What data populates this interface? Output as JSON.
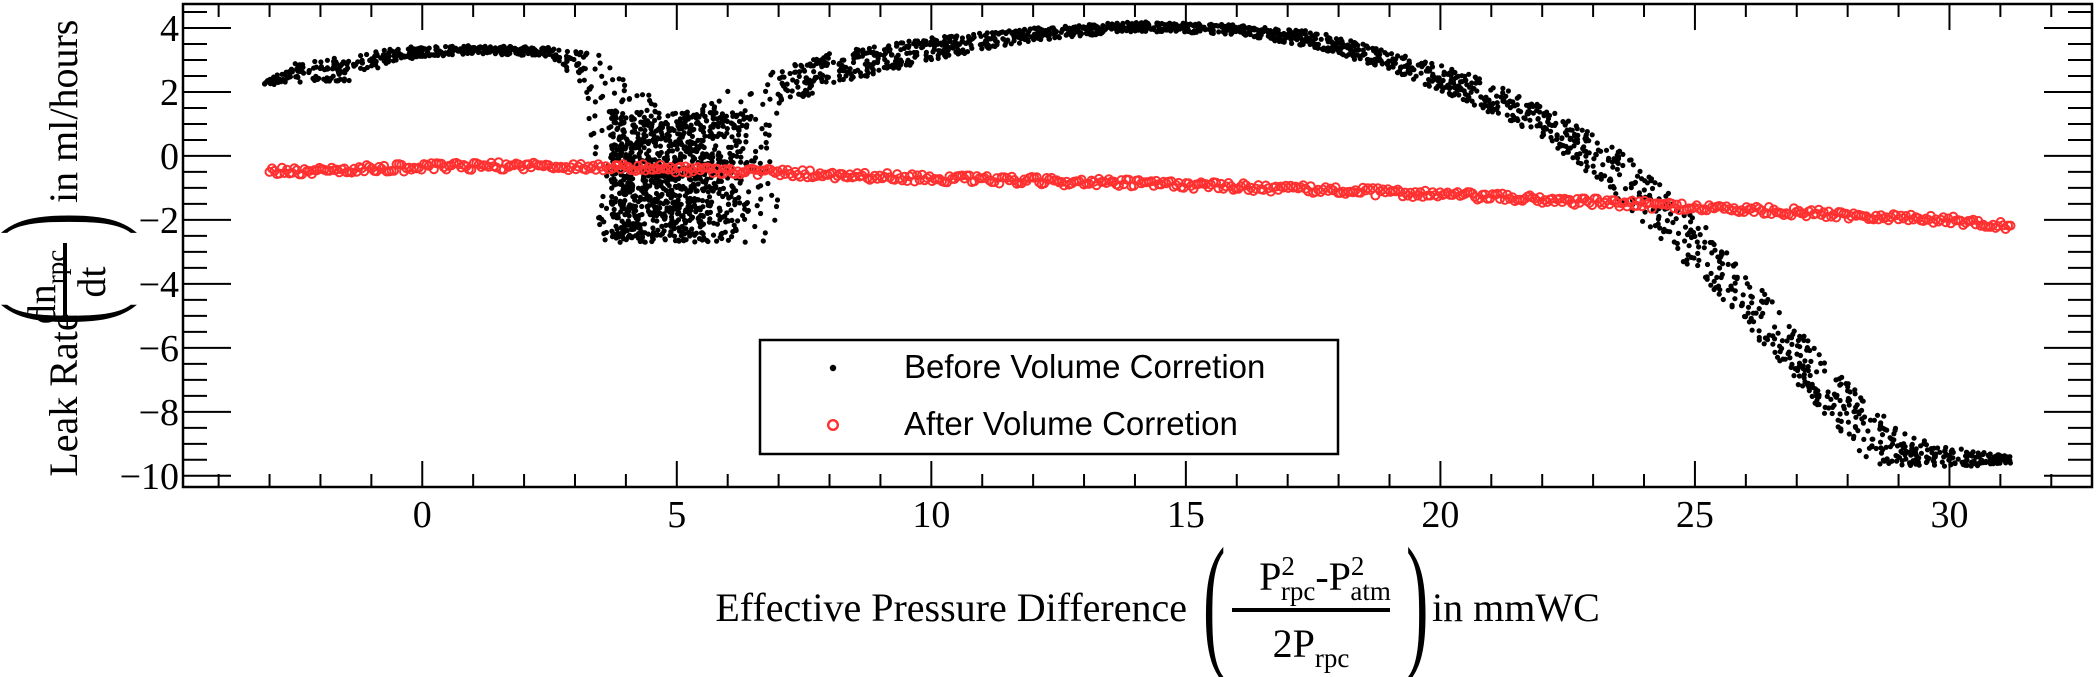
{
  "chart_data": {
    "type": "scatter",
    "xlabel": {
      "prefix": "Effective Pressure Difference",
      "frac_num_base1": "P",
      "frac_num_sup1": "2",
      "frac_num_sub1": "rpc",
      "frac_num_sep": "-",
      "frac_num_base2": "P",
      "frac_num_sup2": "2",
      "frac_num_sub2": "atm",
      "frac_den_base": "2P",
      "frac_den_sub": "rpc",
      "suffix": "in mmWC"
    },
    "ylabel": {
      "prefix": "Leak Rate",
      "frac_num_base": "dn",
      "frac_num_sub": "rpc",
      "frac_den": "dt",
      "suffix": "in ml/hours"
    },
    "xlim": [
      -4.7,
      32.8
    ],
    "ylim": [
      -10.35,
      4.75
    ],
    "xticks": [
      0,
      5,
      10,
      15,
      20,
      25,
      30
    ],
    "xtick_labels": [
      "0",
      "5",
      "10",
      "15",
      "20",
      "25",
      "30"
    ],
    "yticks": [
      4,
      2,
      0,
      -2,
      -4,
      -6,
      -8,
      -10
    ],
    "ytick_labels": [
      "4",
      "2",
      "0",
      "−2",
      "−4",
      "−6",
      "−8",
      "−10"
    ],
    "grid": false,
    "legend_position": "bottom-center",
    "series": [
      {
        "name": "Before Volume Corretion",
        "color": "#000000",
        "marker": "dot",
        "upper_envelope": [
          [
            -3.1,
            2.3
          ],
          [
            -2.5,
            2.9
          ],
          [
            -1.5,
            3.1
          ],
          [
            -0.5,
            3.4
          ],
          [
            1.0,
            3.45
          ],
          [
            2.5,
            3.4
          ],
          [
            3.5,
            3.2
          ],
          [
            4.2,
            2.4
          ],
          [
            5.0,
            1.2
          ],
          [
            5.8,
            1.9
          ],
          [
            6.8,
            2.6
          ],
          [
            8.0,
            3.2
          ],
          [
            10.0,
            3.7
          ],
          [
            12.0,
            4.0
          ],
          [
            14.0,
            4.2
          ],
          [
            16.0,
            4.1
          ],
          [
            17.5,
            3.9
          ],
          [
            19.0,
            3.3
          ],
          [
            20.5,
            2.6
          ],
          [
            22.0,
            1.6
          ],
          [
            23.5,
            0.2
          ],
          [
            24.8,
            -1.5
          ],
          [
            26.0,
            -3.6
          ],
          [
            27.0,
            -5.4
          ],
          [
            28.0,
            -7.0
          ],
          [
            29.0,
            -8.6
          ],
          [
            30.0,
            -9.1
          ],
          [
            31.2,
            -9.4
          ]
        ],
        "lower_envelope": [
          [
            -3.1,
            2.2
          ],
          [
            -2.5,
            2.3
          ],
          [
            -1.5,
            2.3
          ],
          [
            -0.5,
            3.0
          ],
          [
            1.0,
            3.2
          ],
          [
            2.5,
            3.1
          ],
          [
            3.2,
            2.2
          ],
          [
            3.5,
            -2.7
          ],
          [
            7.0,
            -2.7
          ],
          [
            6.2,
            0.8
          ],
          [
            6.8,
            1.3
          ],
          [
            8.0,
            2.2
          ],
          [
            10.0,
            3.0
          ],
          [
            12.0,
            3.6
          ],
          [
            14.0,
            3.9
          ],
          [
            16.0,
            3.8
          ],
          [
            17.5,
            3.4
          ],
          [
            19.0,
            2.7
          ],
          [
            20.5,
            1.7
          ],
          [
            22.0,
            0.6
          ],
          [
            23.2,
            -0.9
          ],
          [
            24.3,
            -2.6
          ],
          [
            25.5,
            -4.4
          ],
          [
            26.5,
            -6.2
          ],
          [
            27.5,
            -8.0
          ],
          [
            28.5,
            -9.7
          ],
          [
            30.5,
            -9.7
          ],
          [
            31.2,
            -9.6
          ]
        ],
        "dip_region": {
          "x_min": 3.3,
          "x_max": 7.0,
          "y_min": -2.7,
          "y_max": 1.4
        }
      },
      {
        "name": "After Volume Corretion",
        "color": "#ff3030",
        "marker": "open-circle",
        "trend": [
          [
            -3.0,
            -0.5
          ],
          [
            0.0,
            -0.35
          ],
          [
            2.0,
            -0.3
          ],
          [
            5.0,
            -0.4
          ],
          [
            10.0,
            -0.7
          ],
          [
            15.0,
            -0.9
          ],
          [
            20.0,
            -1.2
          ],
          [
            25.0,
            -1.6
          ],
          [
            30.0,
            -2.0
          ],
          [
            31.2,
            -2.2
          ]
        ],
        "spread": 0.12
      }
    ]
  }
}
